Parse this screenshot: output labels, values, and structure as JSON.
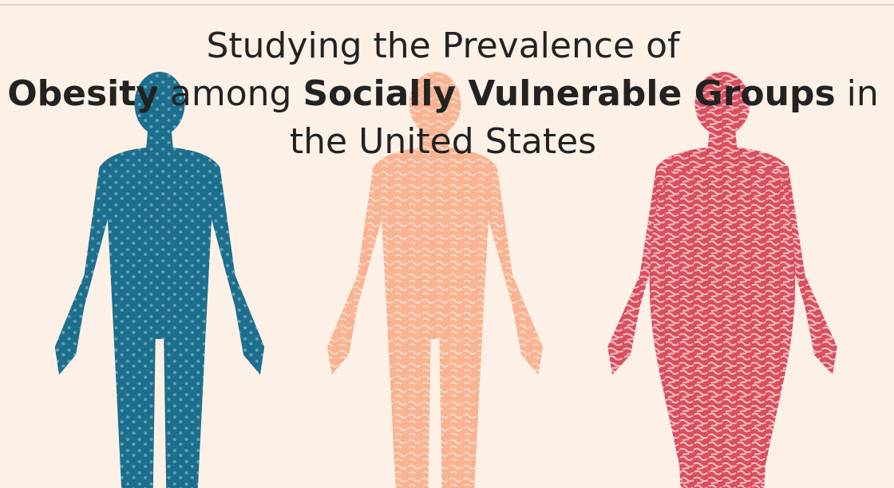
{
  "title": {
    "line1": "Studying the Prevalence of",
    "line2": [
      {
        "text": "Obesity",
        "bold": true
      },
      {
        "text": " among ",
        "bold": false
      },
      {
        "text": "Socially Vulnerable Groups",
        "bold": true
      },
      {
        "text": " in",
        "bold": false
      }
    ],
    "line3": "the United States"
  }
}
